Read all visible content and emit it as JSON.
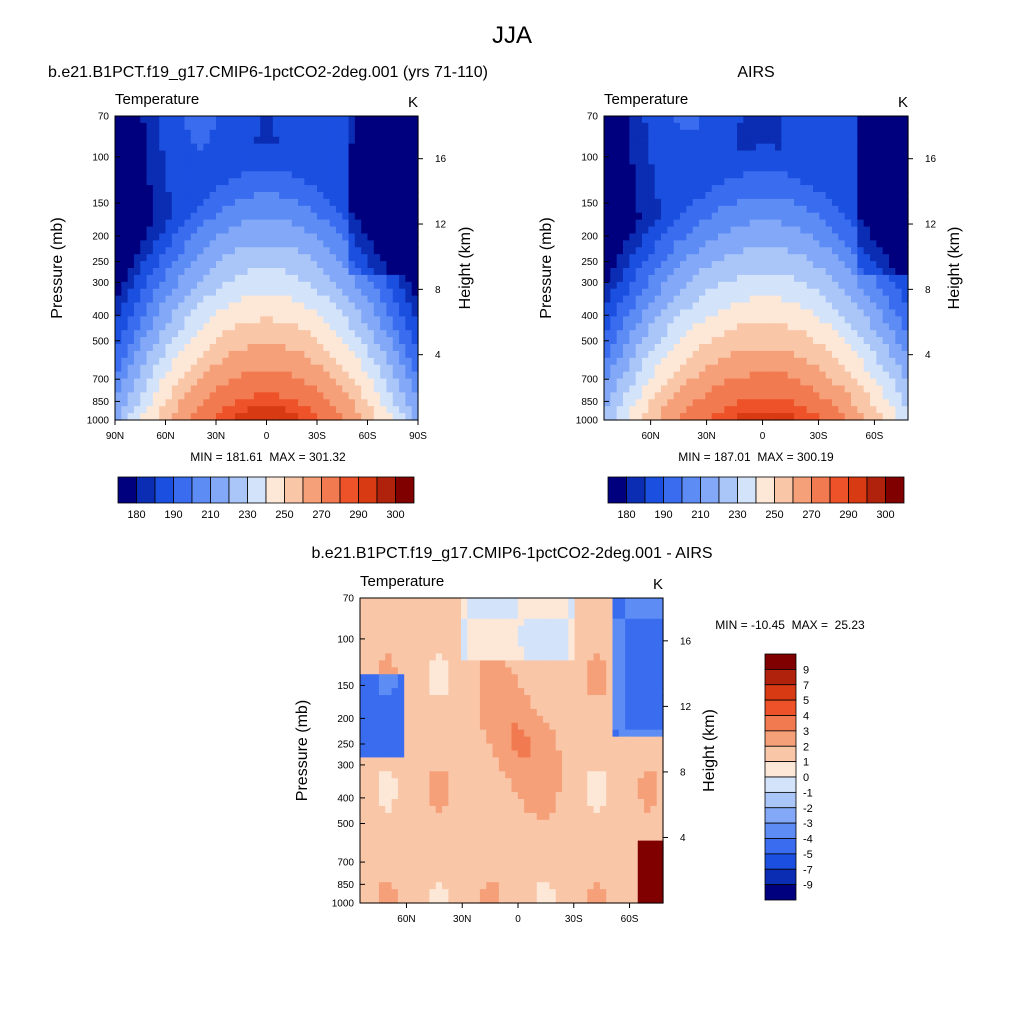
{
  "figure": {
    "title": "JJA"
  },
  "chart_data": [
    {
      "type": "heatmap",
      "title": "b.e21.B1PCT.f19_g17.CMIP6-1pctCO2-2deg.001 (yrs 71-110)",
      "left_label": "Temperature",
      "units": "K",
      "ylabel": "Pressure (mb)",
      "ylabel_right": "Height (km)",
      "x_ticks": [
        "90N",
        "60N",
        "30N",
        "0",
        "30S",
        "60S",
        "90S"
      ],
      "y_ticks": [
        "70",
        "100",
        "150",
        "200",
        "250",
        "300",
        "400",
        "500",
        "700",
        "850",
        "1000"
      ],
      "y_ticks_right": [
        "16",
        "12",
        "8",
        "4"
      ],
      "stats": "MIN = 181.61  MAX = 301.32",
      "min": 181.61,
      "max": 301.32,
      "colorbar": {
        "orientation": "horizontal",
        "labels": [
          "180",
          "190",
          "210",
          "230",
          "250",
          "270",
          "290",
          "300"
        ],
        "colors": [
          "#00007f",
          "#0a2db3",
          "#1a4fe0",
          "#3a6cf0",
          "#5d8cf5",
          "#82a8f7",
          "#aac6f9",
          "#d3e3fa",
          "#fde8d8",
          "#f9c6a8",
          "#f5a079",
          "#f27a50",
          "#ee5229",
          "#d83a14",
          "#b0220b",
          "#800000"
        ]
      }
    },
    {
      "type": "heatmap",
      "title": "AIRS",
      "left_label": "Temperature",
      "units": "K",
      "ylabel": "Pressure (mb)",
      "ylabel_right": "Height (km)",
      "x_ticks": [
        "60N",
        "30N",
        "0",
        "30S",
        "60S"
      ],
      "y_ticks": [
        "70",
        "100",
        "150",
        "200",
        "250",
        "300",
        "400",
        "500",
        "700",
        "850",
        "1000"
      ],
      "y_ticks_right": [
        "16",
        "12",
        "8",
        "4"
      ],
      "stats": "MIN = 187.01  MAX = 300.19",
      "min": 187.01,
      "max": 300.19,
      "colorbar": {
        "orientation": "horizontal",
        "labels": [
          "180",
          "190",
          "210",
          "230",
          "250",
          "270",
          "290",
          "300"
        ],
        "colors": [
          "#00007f",
          "#0a2db3",
          "#1a4fe0",
          "#3a6cf0",
          "#5d8cf5",
          "#82a8f7",
          "#aac6f9",
          "#d3e3fa",
          "#fde8d8",
          "#f9c6a8",
          "#f5a079",
          "#f27a50",
          "#ee5229",
          "#d83a14",
          "#b0220b",
          "#800000"
        ]
      }
    },
    {
      "type": "heatmap",
      "title": "b.e21.B1PCT.f19_g17.CMIP6-1pctCO2-2deg.001 - AIRS",
      "left_label": "Temperature",
      "units": "K",
      "ylabel": "Pressure (mb)",
      "ylabel_right": "Height (km)",
      "x_ticks": [
        "60N",
        "30N",
        "0",
        "30S",
        "60S"
      ],
      "y_ticks": [
        "70",
        "100",
        "150",
        "200",
        "250",
        "300",
        "400",
        "500",
        "700",
        "850",
        "1000"
      ],
      "y_ticks_right": [
        "16",
        "12",
        "8",
        "4"
      ],
      "stats": "MIN = -10.45  MAX =  25.23",
      "min": -10.45,
      "max": 25.23,
      "colorbar": {
        "orientation": "vertical",
        "labels": [
          "9",
          "7",
          "5",
          "4",
          "3",
          "2",
          "1",
          "0",
          "-1",
          "-2",
          "-3",
          "-4",
          "-5",
          "-7",
          "-9"
        ],
        "colors": [
          "#800000",
          "#b0220b",
          "#d83a14",
          "#ee5229",
          "#f27a50",
          "#f5a079",
          "#f9c6a8",
          "#fde8d8",
          "#d3e3fa",
          "#aac6f9",
          "#82a8f7",
          "#5d8cf5",
          "#3a6cf0",
          "#1a4fe0",
          "#0a2db3",
          "#00007f"
        ]
      }
    }
  ]
}
